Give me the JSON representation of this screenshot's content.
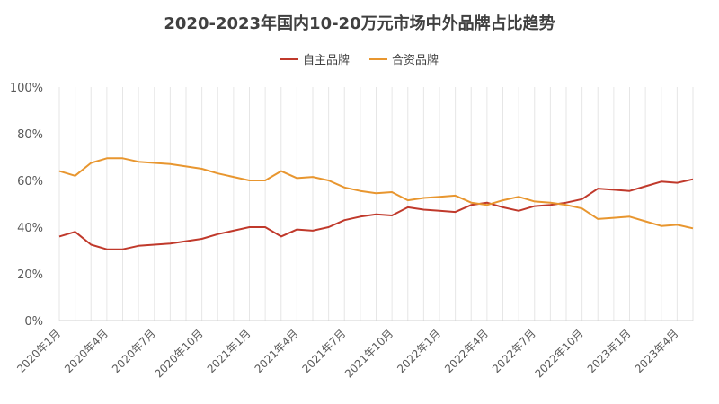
{
  "chart_data": {
    "type": "line",
    "title": "2020-2023年国内10-20万元市场中外品牌占比趋势",
    "xlabel": "",
    "ylabel": "",
    "ylim": [
      0,
      100
    ],
    "yticks": [
      "0%",
      "20%",
      "40%",
      "60%",
      "80%",
      "100%"
    ],
    "grid": "vertical",
    "legend_position": "top",
    "x": [
      "2020年1月",
      "2020年2月",
      "2020年3月",
      "2020年4月",
      "2020年5月",
      "2020年6月",
      "2020年7月",
      "2020年8月",
      "2020年9月",
      "2020年10月",
      "2020年11月",
      "2020年12月",
      "2021年1月",
      "2021年2月",
      "2021年3月",
      "2021年4月",
      "2021年5月",
      "2021年6月",
      "2021年7月",
      "2021年8月",
      "2021年9月",
      "2021年10月",
      "2021年11月",
      "2021年12月",
      "2022年1月",
      "2022年2月",
      "2022年3月",
      "2022年4月",
      "2022年5月",
      "2022年6月",
      "2022年7月",
      "2022年8月",
      "2022年9月",
      "2022年10月",
      "2022年11月",
      "2022年12月",
      "2023年1月",
      "2023年2月",
      "2023年3月",
      "2023年4月",
      "2023年5月"
    ],
    "x_tick_labels": [
      "2020年1月",
      "2020年4月",
      "2020年7月",
      "2020年10月",
      "2021年1月",
      "2021年4月",
      "2021年7月",
      "2021年10月",
      "2022年1月",
      "2022年4月",
      "2022年7月",
      "2022年10月",
      "2023年1月",
      "2023年4月"
    ],
    "series": [
      {
        "name": "自主品牌",
        "color": "#C0392B",
        "values": [
          36,
          38,
          32.5,
          30.5,
          30.5,
          32,
          32.5,
          33,
          34,
          35,
          37,
          38.5,
          40,
          40,
          36,
          39,
          38.5,
          40,
          43,
          44.5,
          45.5,
          45,
          48.5,
          47.5,
          47,
          46.5,
          49.5,
          50.5,
          48.5,
          47,
          49,
          49.5,
          50.5,
          52,
          56.5,
          56,
          55.5,
          57.5,
          59.5,
          59,
          60.5
        ]
      },
      {
        "name": "合资品牌",
        "color": "#E8962F",
        "values": [
          64,
          62,
          67.5,
          69.5,
          69.5,
          68,
          67.5,
          67,
          66,
          65,
          63,
          61.5,
          60,
          60,
          64,
          61,
          61.5,
          60,
          57,
          55.5,
          54.5,
          55,
          51.5,
          52.5,
          53,
          53.5,
          50.5,
          49.5,
          51.5,
          53,
          51,
          50.5,
          49.5,
          48,
          43.5,
          44,
          44.5,
          42.5,
          40.5,
          41,
          39.5
        ]
      }
    ]
  }
}
